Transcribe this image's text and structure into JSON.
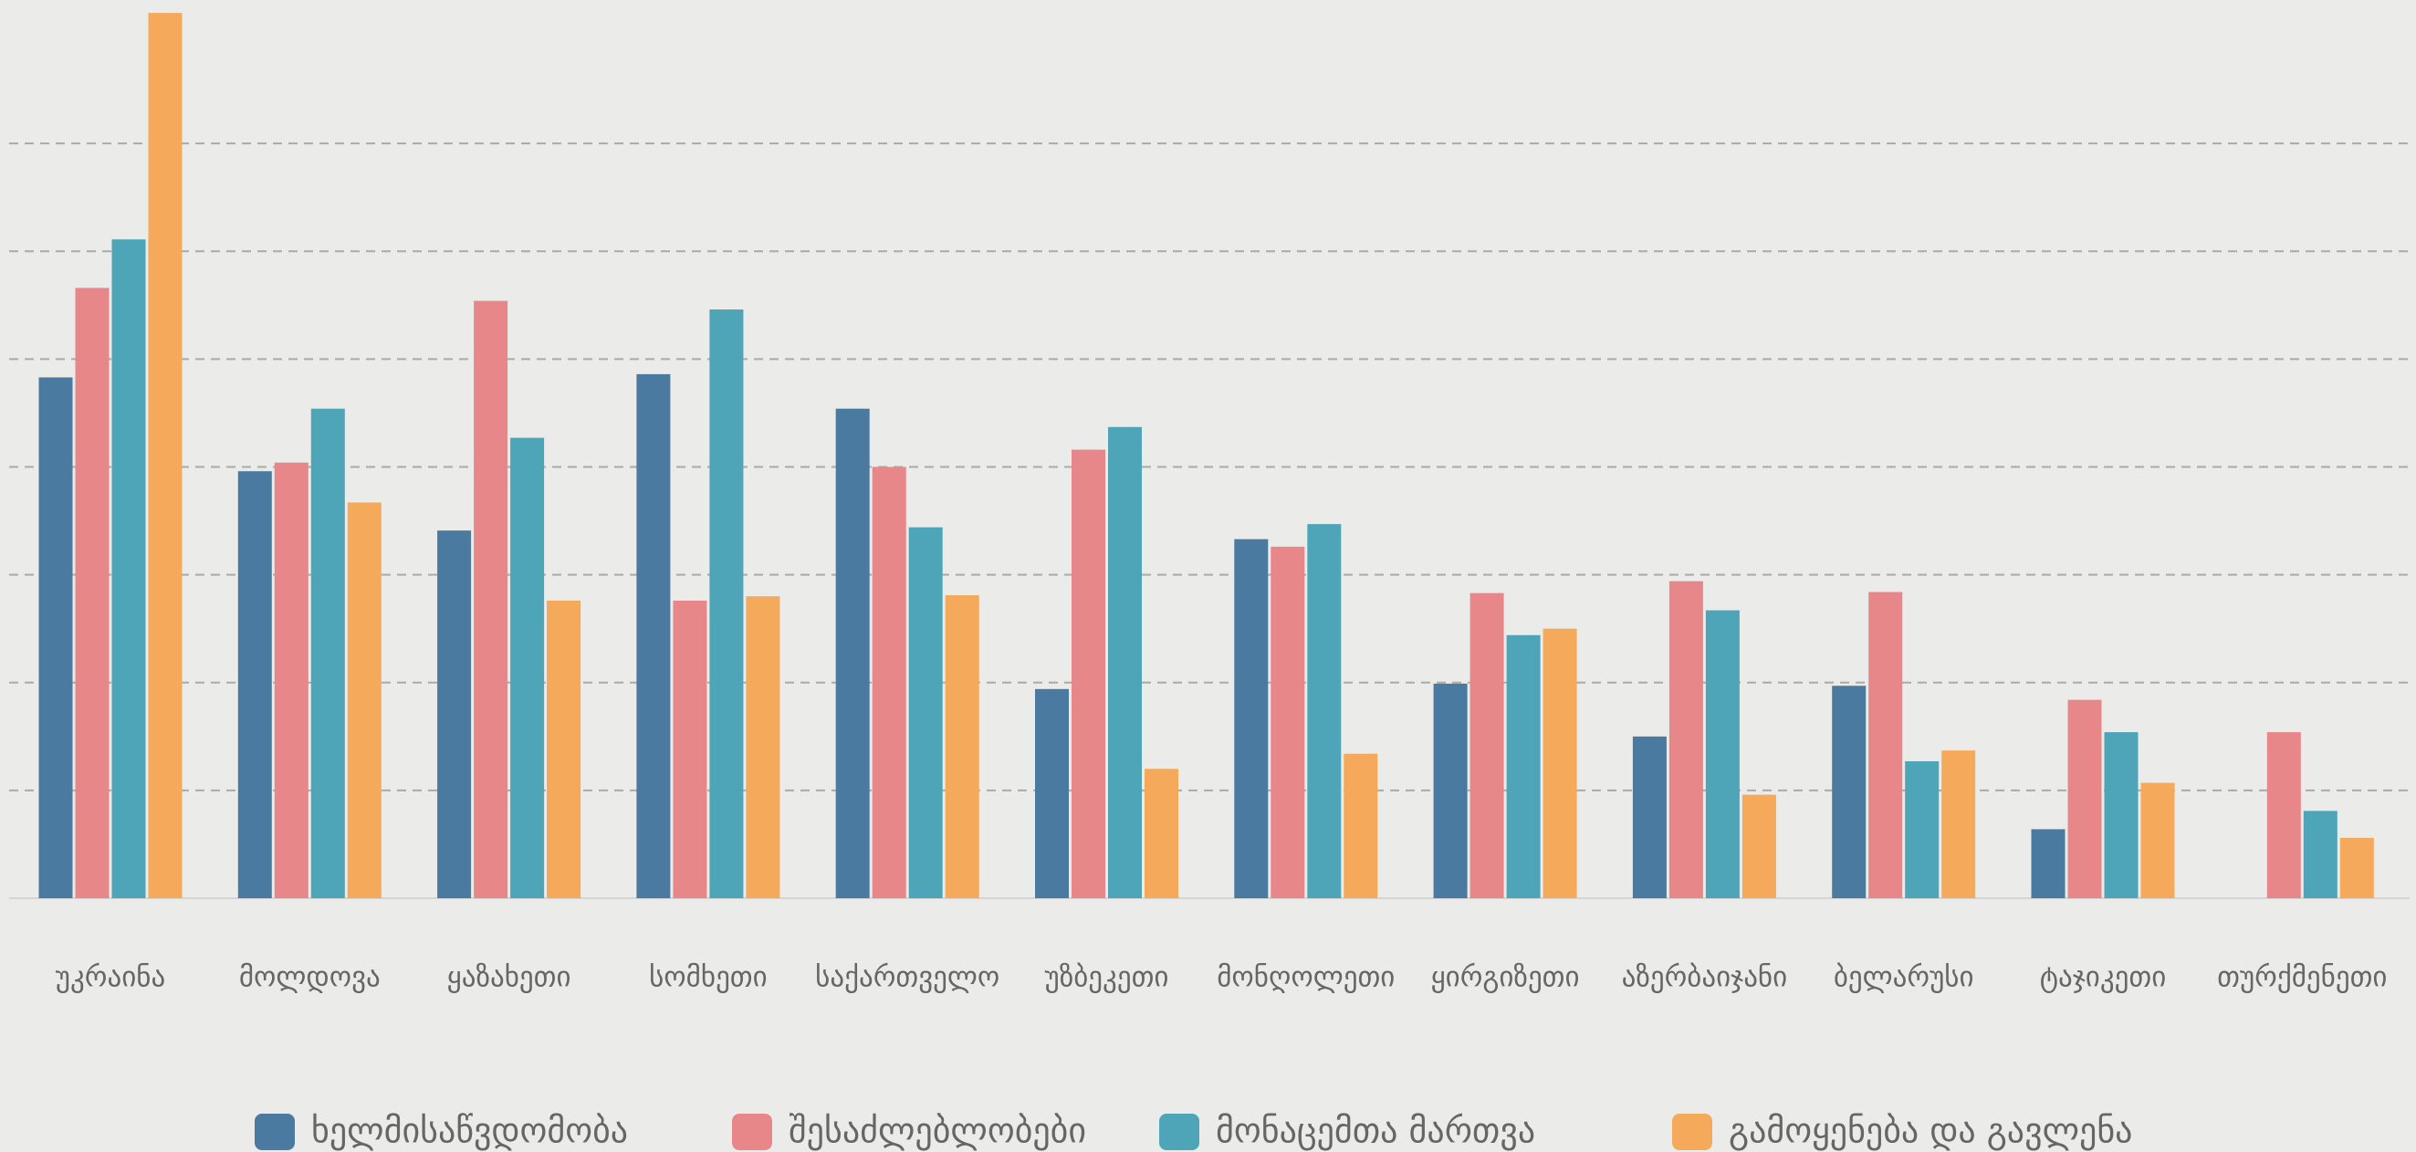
{
  "chart_data": {
    "type": "bar",
    "categories": [
      "უკრაინა",
      "მოლდოვა",
      "ყაზახეთი",
      "სომხეთი",
      "საქართველო",
      "უზბეკეთი",
      "მონღოლეთი",
      "ყირგიზეთი",
      "აზერბაიჯანი",
      "ბელარუსი",
      "ტაჯიკეთი",
      "თურქმენეთი"
    ],
    "series": [
      {
        "name": "ხელმისაწვდომობა",
        "color": "#4a7aa0",
        "values": [
          48.3,
          39.6,
          34.1,
          48.6,
          45.4,
          19.4,
          33.3,
          19.9,
          15,
          19.7,
          6.4,
          null
        ]
      },
      {
        "name": "შესაძლებლობები",
        "color": "#e8878a",
        "values": [
          56.6,
          40.4,
          55.4,
          27.6,
          40,
          41.6,
          32.6,
          28.3,
          29.4,
          28.4,
          18.4,
          15.4
        ]
      },
      {
        "name": "მონაცემთა მართვა",
        "color": "#4fa5b8",
        "values": [
          61.1,
          45.4,
          42.7,
          54.6,
          34.4,
          43.7,
          34.7,
          24.4,
          26.7,
          12.7,
          15.4,
          8.1
        ]
      },
      {
        "name": "გამოყენება და გავლენა",
        "color": "#f5a95a",
        "values": [
          82.1,
          36.7,
          27.6,
          28,
          28.1,
          12,
          13.4,
          25,
          9.6,
          13.7,
          10.7,
          5.6
        ]
      }
    ],
    "ylim": [
      0,
      83.3
    ],
    "yticks": [
      0,
      10,
      20,
      30,
      40,
      50,
      60,
      70
    ],
    "grid": true
  }
}
